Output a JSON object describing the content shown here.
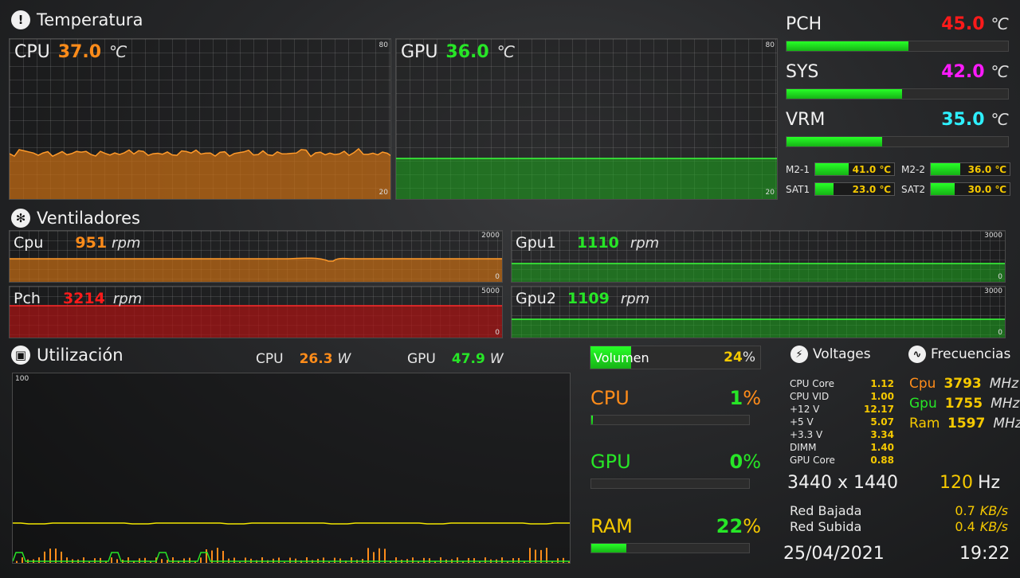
{
  "temperatura": {
    "title": "Temperatura",
    "cpu": {
      "label": "CPU",
      "value": "37.0",
      "unit": "℃",
      "scale_max": "80",
      "scale_min": "20",
      "color": "#ff8c1a"
    },
    "gpu": {
      "label": "GPU",
      "value": "36.0",
      "unit": "℃",
      "scale_max": "80",
      "scale_min": "20",
      "color": "#27e627"
    },
    "pch": {
      "label": "PCH",
      "value": "45.0",
      "unit": "℃",
      "percent": 0.55,
      "color": "#ff1a1a"
    },
    "sys": {
      "label": "SYS",
      "value": "42.0",
      "unit": "℃",
      "percent": 0.52,
      "color": "#ff1aff"
    },
    "vrm": {
      "label": "VRM",
      "value": "35.0",
      "unit": "℃",
      "percent": 0.43,
      "color": "#2ef0ff"
    },
    "drives": [
      {
        "label": "M2-1",
        "value": "41.0 ℃",
        "percent": 0.42
      },
      {
        "label": "M2-2",
        "value": "36.0 ℃",
        "percent": 0.37
      },
      {
        "label": "SAT1",
        "value": "23.0 ℃",
        "percent": 0.23
      },
      {
        "label": "SAT2",
        "value": "30.0 ℃",
        "percent": 0.3
      }
    ]
  },
  "ventiladores": {
    "title": "Ventiladores",
    "cpu": {
      "label": "Cpu",
      "value": "951",
      "unit": "rpm",
      "scale_max": "2000",
      "scale_min": "0",
      "color": "#ff8c1a"
    },
    "pch": {
      "label": "Pch",
      "value": "3214",
      "unit": "rpm",
      "scale_max": "5000",
      "scale_min": "0",
      "color": "#ff1a1a"
    },
    "gpu1": {
      "label": "Gpu1",
      "value": "1110",
      "unit": "rpm",
      "scale_max": "3000",
      "scale_min": "0",
      "color": "#27e627"
    },
    "gpu2": {
      "label": "Gpu2",
      "value": "1109",
      "unit": "rpm",
      "scale_max": "3000",
      "scale_min": "0",
      "color": "#27e627"
    }
  },
  "utilizacion": {
    "title": "Utilización",
    "cpu_power": {
      "label": "CPU",
      "value": "26.3",
      "unit": "W"
    },
    "gpu_power": {
      "label": "GPU",
      "value": "47.9",
      "unit": "W"
    },
    "scale_max": "100"
  },
  "load": {
    "volumen": {
      "label": "Volumen",
      "value": "24",
      "percent": 0.24
    },
    "cpu": {
      "label": "CPU",
      "value": "1",
      "percent": 0.01
    },
    "gpu": {
      "label": "GPU",
      "value": "0",
      "percent": 0.0
    },
    "ram": {
      "label": "RAM",
      "value": "22",
      "percent": 0.22
    },
    "pct_sign": "%"
  },
  "voltages": {
    "title": "Voltages",
    "rows": [
      {
        "label": "CPU Core",
        "value": "1.12"
      },
      {
        "label": "CPU VID",
        "value": "1.00"
      },
      {
        "label": "+12 V",
        "value": "12.17"
      },
      {
        "label": "+5 V",
        "value": "5.07"
      },
      {
        "label": "+3.3 V",
        "value": "3.34"
      },
      {
        "label": "DIMM",
        "value": "1.40"
      },
      {
        "label": "GPU Core",
        "value": "0.88"
      }
    ]
  },
  "frecuencias": {
    "title": "Frecuencias",
    "rows": [
      {
        "label": "Cpu",
        "value": "3793",
        "unit": "MHz"
      },
      {
        "label": "Gpu",
        "value": "1755",
        "unit": "MHz"
      },
      {
        "label": "Ram",
        "value": "1597",
        "unit": "MHz"
      }
    ]
  },
  "display": {
    "resolution": "3440 x 1440",
    "refresh_value": "120",
    "refresh_unit": "Hz"
  },
  "network": {
    "down": {
      "label": "Red Bajada",
      "value": "0.7",
      "unit": "KB/s"
    },
    "up": {
      "label": "Red Subida",
      "value": "0.4",
      "unit": "KB/s"
    }
  },
  "clock": {
    "date": "25/04/2021",
    "time": "19:22"
  },
  "colors": {
    "accent_yellow": "#f6c900",
    "bar_green": "#27e627"
  }
}
